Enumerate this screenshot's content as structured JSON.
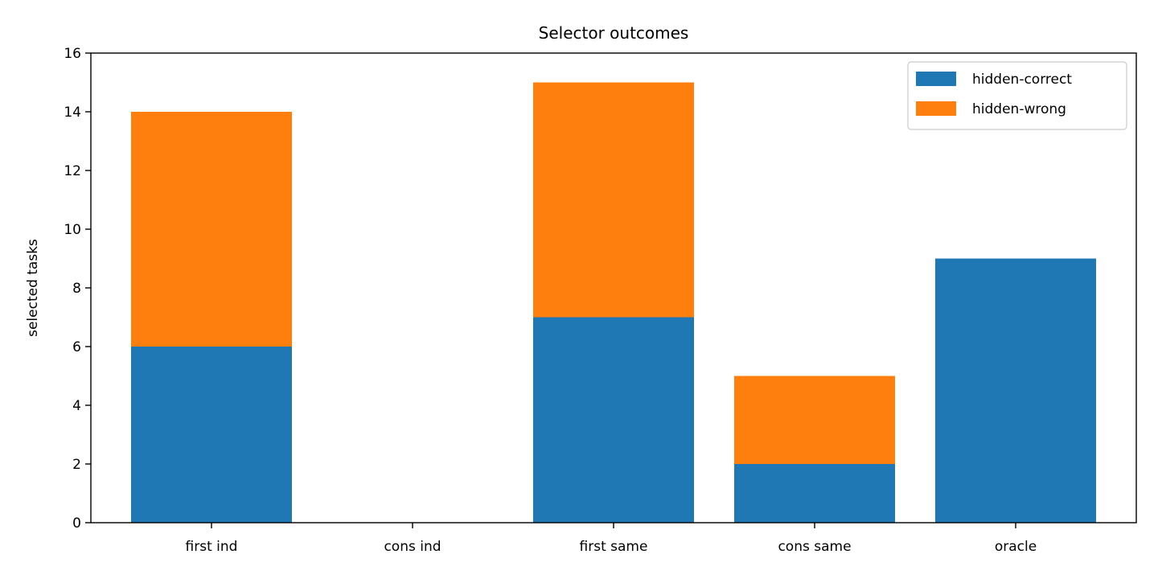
{
  "chart_data": {
    "type": "bar",
    "stacked": true,
    "title": "Selector outcomes",
    "xlabel": "",
    "ylabel": "selected tasks",
    "categories": [
      "first ind",
      "cons ind",
      "first same",
      "cons same",
      "oracle"
    ],
    "series": [
      {
        "name": "hidden-correct",
        "values": [
          6,
          0,
          7,
          2,
          9
        ],
        "color": "#1f77b4"
      },
      {
        "name": "hidden-wrong",
        "values": [
          8,
          0,
          8,
          3,
          0
        ],
        "color": "#ff7f0e"
      }
    ],
    "ylim": [
      0,
      16
    ],
    "yticks": [
      "0",
      "2",
      "4",
      "6",
      "8",
      "10",
      "12",
      "14",
      "16"
    ],
    "grid": false,
    "legend_position": "top-right"
  }
}
